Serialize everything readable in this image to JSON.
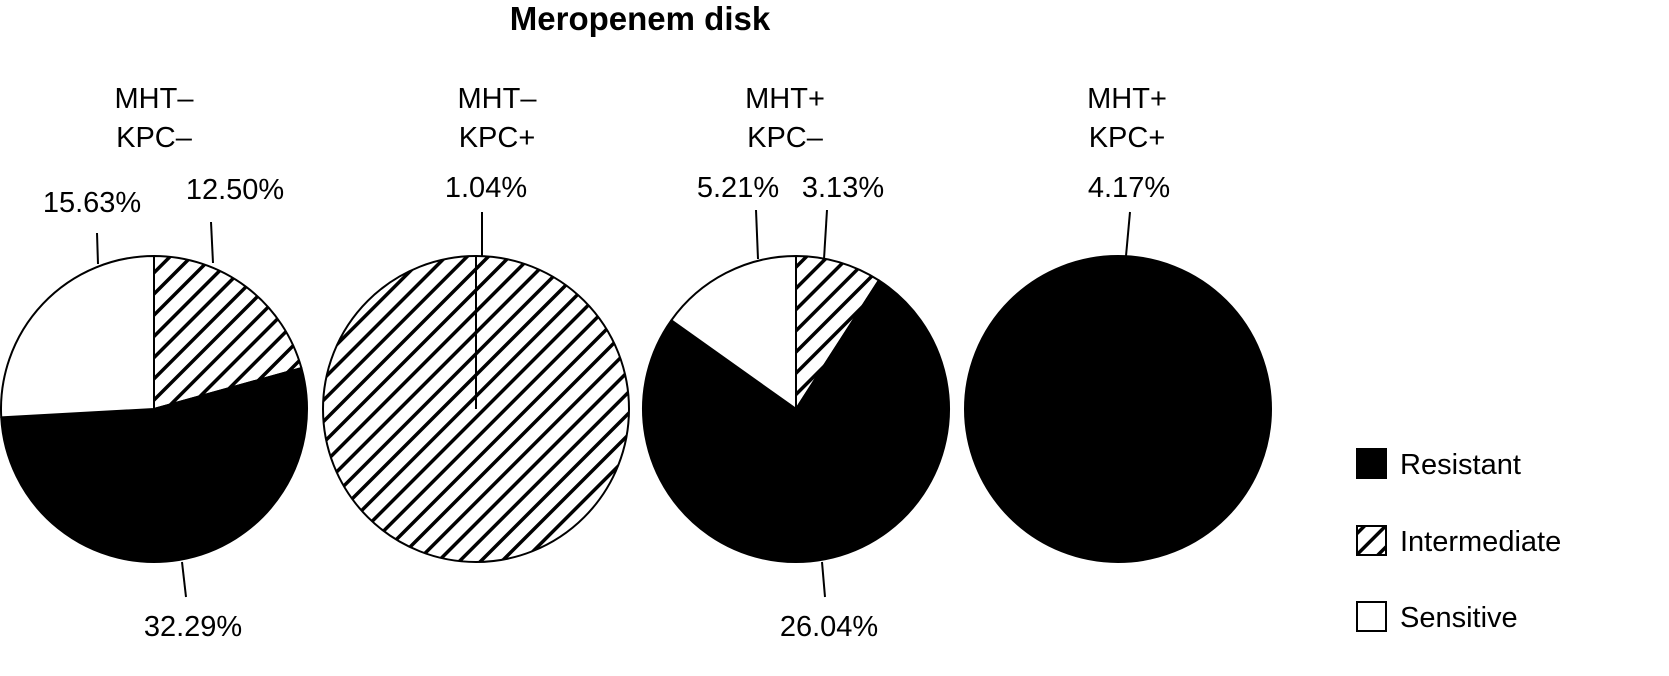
{
  "chart_data": {
    "type": "pie",
    "title": "Meropenem disk",
    "categories": [
      "Resistant",
      "Intermediate",
      "Sensitive"
    ],
    "colors": {
      "Resistant": "#000000",
      "Intermediate": "hatch",
      "Sensitive": "#ffffff"
    },
    "legend": {
      "placement": "right",
      "entries": [
        "Resistant",
        "Intermediate",
        "Sensitive"
      ]
    },
    "pies": [
      {
        "label_lines": [
          "MHT–",
          "KPC–"
        ],
        "slices": [
          {
            "category": "Resistant",
            "value": 32.29,
            "label": "32.29%"
          },
          {
            "category": "Intermediate",
            "value": 12.5,
            "label": "12.50%"
          },
          {
            "category": "Sensitive",
            "value": 15.63,
            "label": "15.63%"
          }
        ]
      },
      {
        "label_lines": [
          "MHT–",
          "KPC+"
        ],
        "slices": [
          {
            "category": "Intermediate",
            "value": 1.04,
            "label": "1.04%"
          }
        ]
      },
      {
        "label_lines": [
          "MHT+",
          "KPC–"
        ],
        "slices": [
          {
            "category": "Resistant",
            "value": 26.04,
            "label": "26.04%"
          },
          {
            "category": "Intermediate",
            "value": 3.13,
            "label": "3.13%"
          },
          {
            "category": "Sensitive",
            "value": 5.21,
            "label": "5.21%"
          }
        ]
      },
      {
        "label_lines": [
          "MHT+",
          "KPC+"
        ],
        "slices": [
          {
            "category": "Resistant",
            "value": 4.17,
            "label": "4.17%"
          }
        ]
      }
    ]
  }
}
